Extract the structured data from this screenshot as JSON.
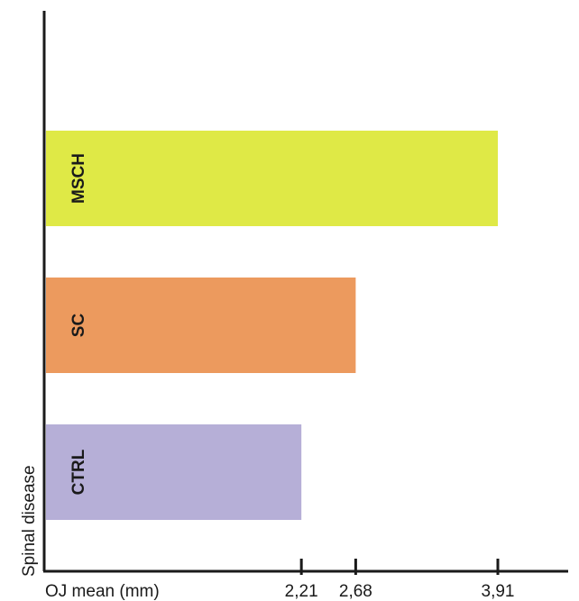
{
  "chart_data": {
    "type": "bar",
    "orientation": "horizontal",
    "categories": [
      "MSCH",
      "SC",
      "CTRL"
    ],
    "values": [
      3.91,
      2.68,
      2.21
    ],
    "value_labels": [
      "3,91",
      "2,68",
      "2,21"
    ],
    "colors": [
      "#dfe946",
      "#ec9a5e",
      "#b6afd7"
    ],
    "xlabel": "OJ mean (mm)",
    "ylabel": "Spinal disease",
    "legend": "none",
    "grid": false
  }
}
